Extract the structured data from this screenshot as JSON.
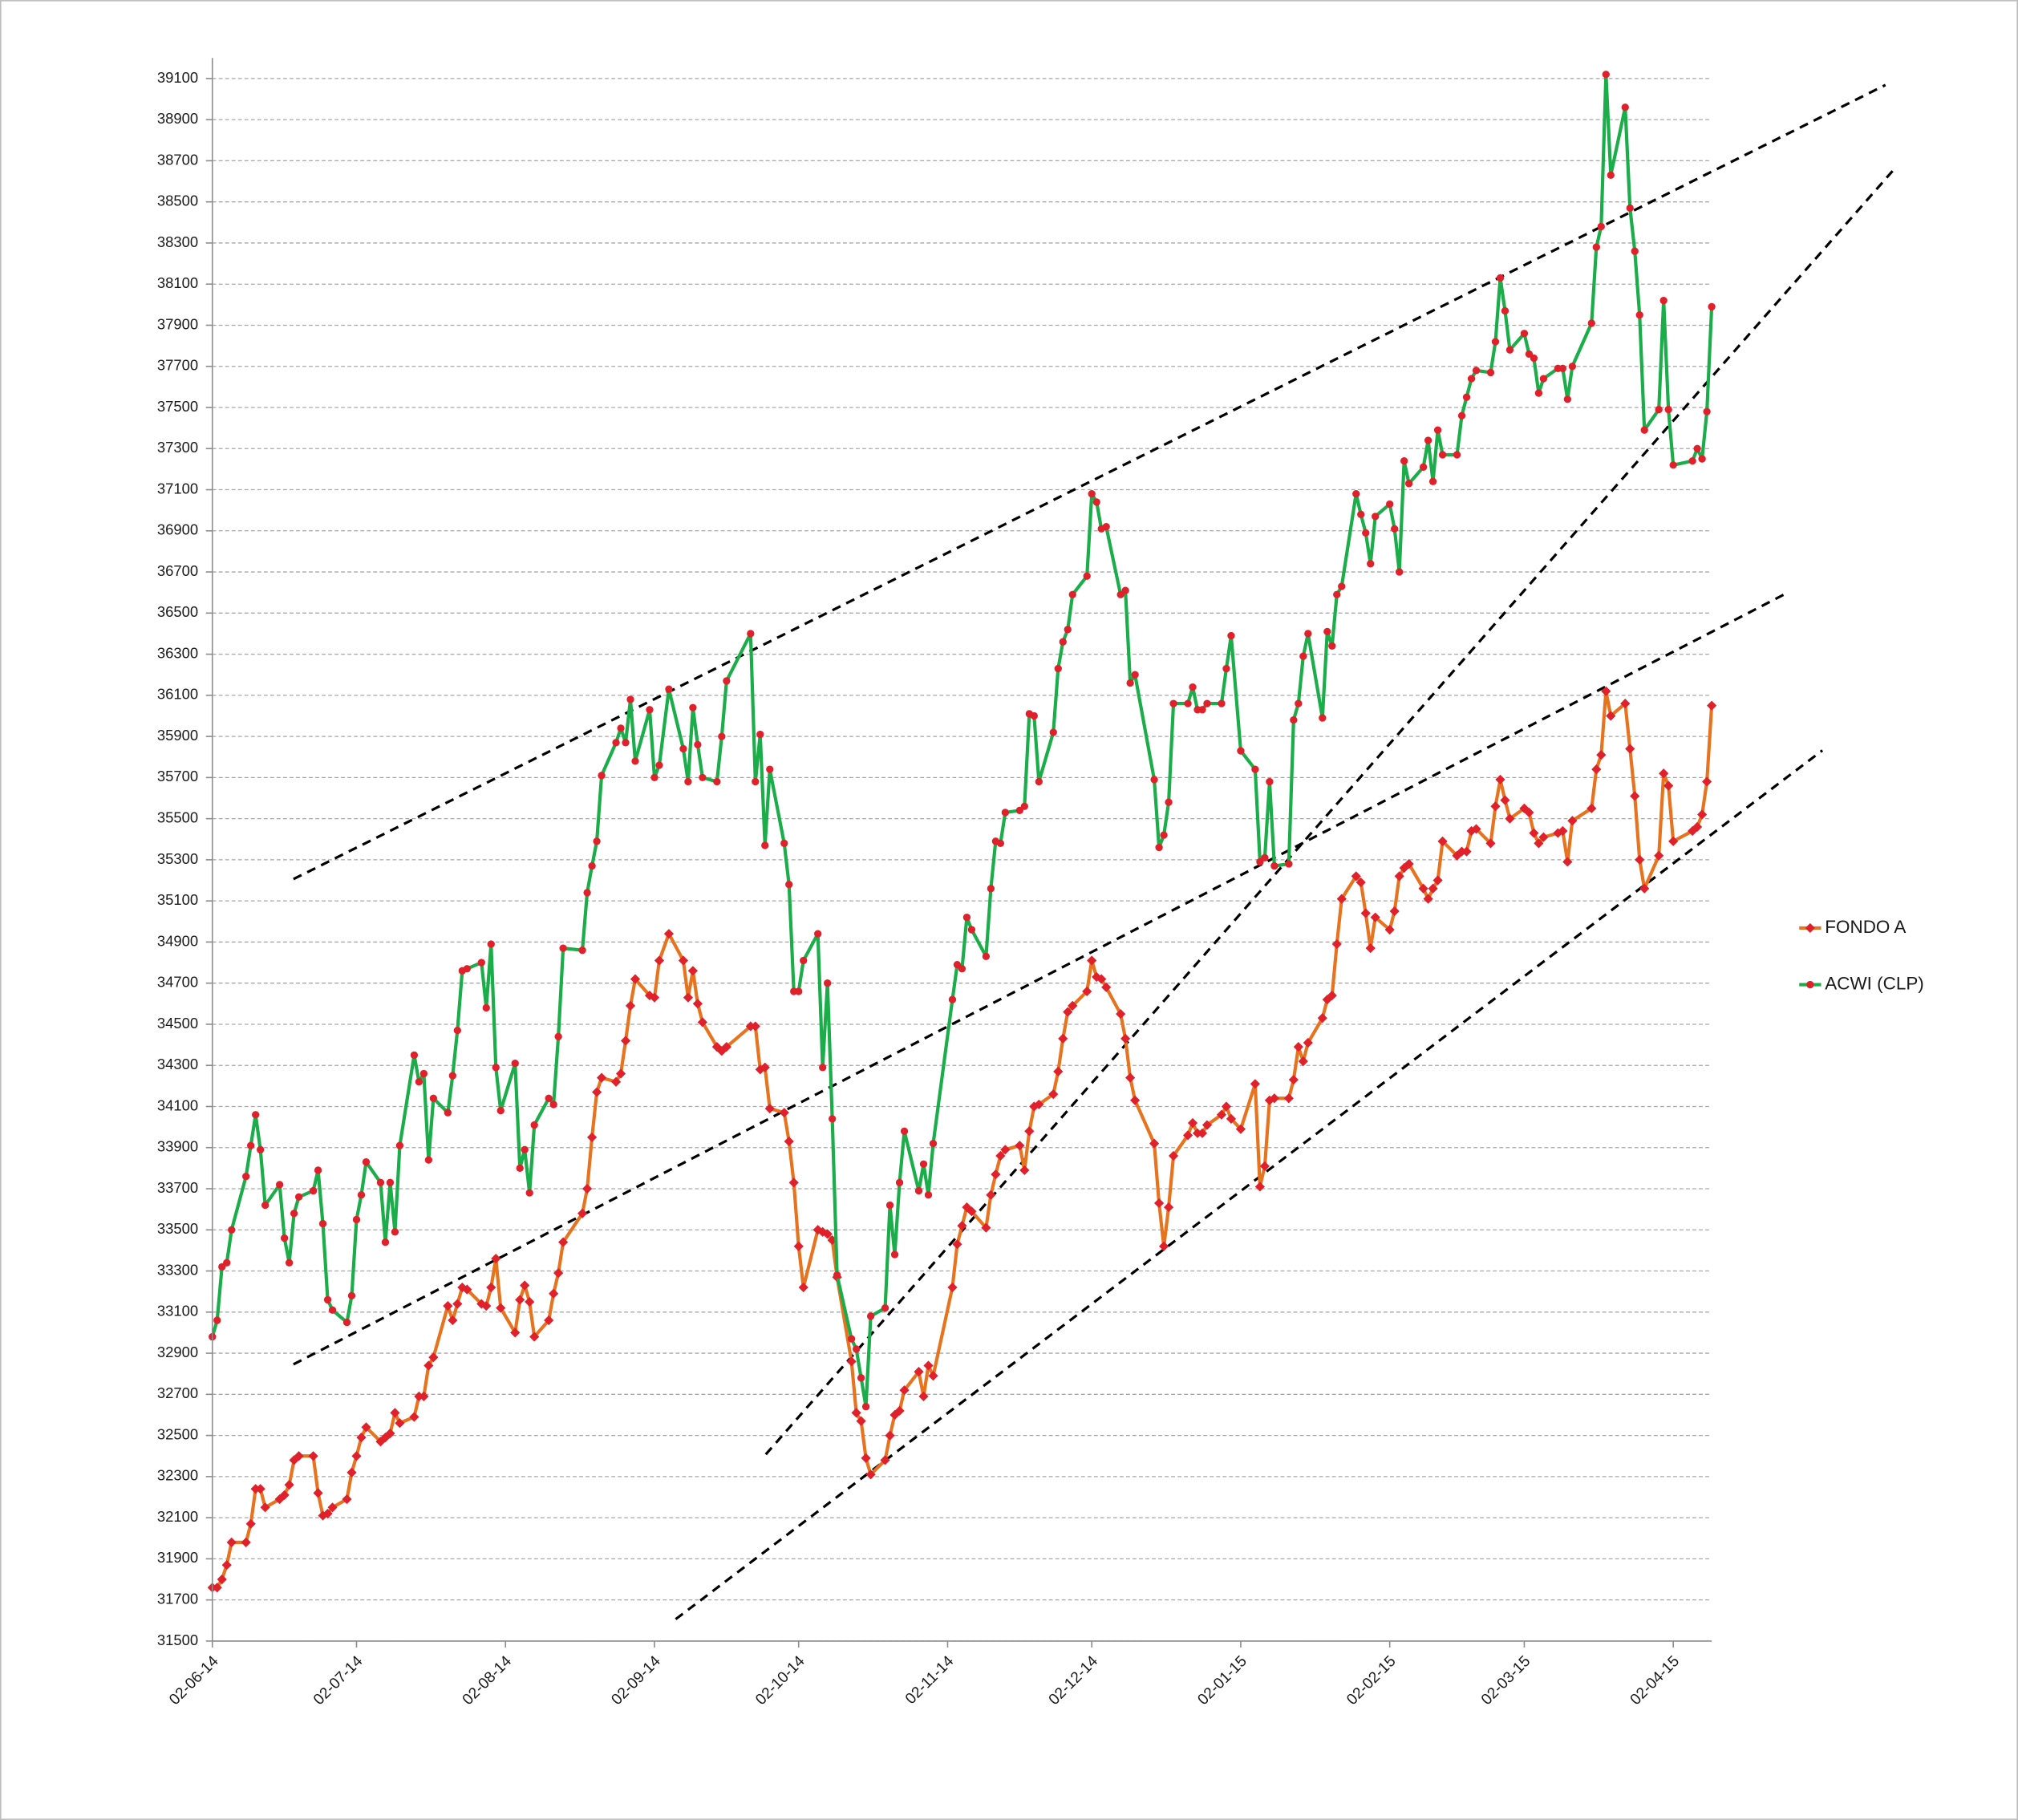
{
  "chart_data": {
    "type": "line",
    "x": [
      "02-06-14",
      "03-06-14",
      "04-06-14",
      "05-06-14",
      "06-06-14",
      "09-06-14",
      "10-06-14",
      "11-06-14",
      "12-06-14",
      "13-06-14",
      "16-06-14",
      "17-06-14",
      "18-06-14",
      "19-06-14",
      "20-06-14",
      "23-06-14",
      "24-06-14",
      "25-06-14",
      "26-06-14",
      "27-06-14",
      "30-06-14",
      "01-07-14",
      "02-07-14",
      "03-07-14",
      "04-07-14",
      "07-07-14",
      "08-07-14",
      "09-07-14",
      "10-07-14",
      "11-07-14",
      "14-07-14",
      "15-07-14",
      "16-07-14",
      "17-07-14",
      "18-07-14",
      "21-07-14",
      "22-07-14",
      "23-07-14",
      "24-07-14",
      "25-07-14",
      "28-07-14",
      "29-07-14",
      "30-07-14",
      "31-07-14",
      "01-08-14",
      "04-08-14",
      "05-08-14",
      "06-08-14",
      "07-08-14",
      "08-08-14",
      "11-08-14",
      "12-08-14",
      "13-08-14",
      "14-08-14",
      "18-08-14",
      "19-08-14",
      "20-08-14",
      "21-08-14",
      "22-08-14",
      "25-08-14",
      "26-08-14",
      "27-08-14",
      "28-08-14",
      "29-08-14",
      "01-09-14",
      "02-09-14",
      "03-09-14",
      "05-09-14",
      "08-09-14",
      "09-09-14",
      "10-09-14",
      "11-09-14",
      "12-09-14",
      "15-09-14",
      "16-09-14",
      "17-09-14",
      "22-09-14",
      "23-09-14",
      "24-09-14",
      "25-09-14",
      "26-09-14",
      "29-09-14",
      "30-09-14",
      "01-10-14",
      "02-10-14",
      "03-10-14",
      "06-10-14",
      "07-10-14",
      "08-10-14",
      "09-10-14",
      "10-10-14",
      "13-10-14",
      "14-10-14",
      "15-10-14",
      "16-10-14",
      "17-10-14",
      "20-10-14",
      "21-10-14",
      "22-10-14",
      "23-10-14",
      "24-10-14",
      "27-10-14",
      "28-10-14",
      "29-10-14",
      "30-10-14",
      "03-11-14",
      "04-11-14",
      "05-11-14",
      "06-11-14",
      "07-11-14",
      "10-11-14",
      "11-11-14",
      "12-11-14",
      "13-11-14",
      "14-11-14",
      "17-11-14",
      "18-11-14",
      "19-11-14",
      "20-11-14",
      "21-11-14",
      "24-11-14",
      "25-11-14",
      "26-11-14",
      "27-11-14",
      "28-11-14",
      "01-12-14",
      "02-12-14",
      "03-12-14",
      "04-12-14",
      "05-12-14",
      "08-12-14",
      "09-12-14",
      "10-12-14",
      "11-12-14",
      "15-12-14",
      "16-12-14",
      "17-12-14",
      "18-12-14",
      "19-12-14",
      "22-12-14",
      "23-12-14",
      "24-12-14",
      "25-12-14",
      "26-12-14",
      "29-12-14",
      "30-12-14",
      "31-12-14",
      "02-01-15",
      "05-01-15",
      "06-01-15",
      "07-01-15",
      "08-01-15",
      "09-01-15",
      "12-01-15",
      "13-01-15",
      "14-01-15",
      "15-01-15",
      "16-01-15",
      "19-01-15",
      "20-01-15",
      "21-01-15",
      "22-01-15",
      "23-01-15",
      "26-01-15",
      "27-01-15",
      "28-01-15",
      "29-01-15",
      "30-01-15",
      "02-02-15",
      "03-02-15",
      "04-02-15",
      "05-02-15",
      "06-02-15",
      "09-02-15",
      "10-02-15",
      "11-02-15",
      "12-02-15",
      "13-02-15",
      "16-02-15",
      "17-02-15",
      "18-02-15",
      "19-02-15",
      "20-02-15",
      "23-02-15",
      "24-02-15",
      "25-02-15",
      "26-02-15",
      "27-02-15",
      "02-03-15",
      "03-03-15",
      "04-03-15",
      "05-03-15",
      "06-03-15",
      "09-03-15",
      "10-03-15",
      "11-03-15",
      "12-03-15",
      "16-03-15",
      "17-03-15",
      "18-03-15",
      "19-03-15",
      "20-03-15",
      "23-03-15",
      "24-03-15",
      "25-03-15",
      "26-03-15",
      "27-03-15",
      "30-03-15",
      "31-03-15",
      "01-04-15",
      "02-04-15",
      "06-04-15",
      "07-04-15",
      "08-04-15",
      "09-04-15",
      "10-04-15"
    ],
    "series": [
      {
        "name": "FONDO A",
        "color": "#e8731e",
        "marker": "diamond",
        "marker_color": "#e0202a",
        "values": [
          31760,
          31760,
          31800,
          31870,
          31980,
          31980,
          32070,
          32240,
          32240,
          32150,
          32190,
          32210,
          32260,
          32380,
          32400,
          32400,
          32220,
          32110,
          32120,
          32150,
          32190,
          32320,
          32400,
          32490,
          32540,
          32470,
          32490,
          32510,
          32610,
          32560,
          32590,
          32690,
          32690,
          32840,
          32880,
          33130,
          33060,
          33140,
          33220,
          33210,
          33140,
          33130,
          33220,
          33360,
          33120,
          33000,
          33160,
          33230,
          33150,
          32980,
          33060,
          33190,
          33290,
          33440,
          33580,
          33700,
          33950,
          34170,
          34240,
          34220,
          34260,
          34420,
          34590,
          34720,
          34640,
          34630,
          34810,
          34940,
          34810,
          34630,
          34760,
          34600,
          34510,
          34390,
          34370,
          34390,
          34490,
          34490,
          34280,
          34290,
          34090,
          34070,
          33930,
          33730,
          33420,
          33220,
          33500,
          33490,
          33480,
          33450,
          33270,
          32860,
          32610,
          32570,
          32390,
          32310,
          32380,
          32500,
          32600,
          32620,
          32720,
          32810,
          32690,
          32840,
          32790,
          33220,
          33430,
          33520,
          33610,
          33590,
          33510,
          33670,
          33770,
          33860,
          33890,
          33910,
          33790,
          33980,
          34100,
          34110,
          34160,
          34270,
          34430,
          34560,
          34590,
          34660,
          34810,
          34730,
          34720,
          34680,
          34550,
          34430,
          34240,
          34130,
          33920,
          33630,
          33420,
          33610,
          33860,
          33960,
          34020,
          33970,
          33970,
          34010,
          34060,
          34100,
          34040,
          33990,
          34210,
          33710,
          33810,
          34130,
          34140,
          34140,
          34230,
          34390,
          34320,
          34410,
          34530,
          34620,
          34640,
          34890,
          35110,
          35220,
          35190,
          35040,
          34870,
          35020,
          34960,
          35050,
          35220,
          35260,
          35280,
          35160,
          35110,
          35160,
          35200,
          35390,
          35320,
          35340,
          35340,
          35440,
          35450,
          35380,
          35560,
          35690,
          35590,
          35500,
          35550,
          35530,
          35430,
          35380,
          35410,
          35430,
          35440,
          35290,
          35490,
          35550,
          35740,
          35810,
          36120,
          36000,
          36060,
          35840,
          35610,
          35300,
          35160,
          35320,
          35720,
          35660,
          35390,
          35440,
          35460,
          35520,
          35680,
          36050
        ]
      },
      {
        "name": "ACWI (CLP)",
        "color": "#1aad4a",
        "marker": "circle",
        "marker_color": "#e0202a",
        "values": [
          32980,
          33060,
          33320,
          33340,
          33500,
          33760,
          33910,
          34060,
          33890,
          33620,
          33720,
          33460,
          33340,
          33580,
          33660,
          33690,
          33790,
          33530,
          33160,
          33110,
          33050,
          33180,
          33550,
          33670,
          33830,
          33730,
          33440,
          33730,
          33490,
          33910,
          34350,
          34220,
          34260,
          33840,
          34140,
          34070,
          34250,
          34470,
          34760,
          34770,
          34800,
          34580,
          34890,
          34290,
          34080,
          34310,
          33800,
          33890,
          33680,
          34010,
          34140,
          34110,
          34440,
          34870,
          34860,
          35140,
          35270,
          35390,
          35710,
          35870,
          35940,
          35870,
          36080,
          35780,
          36030,
          35700,
          35760,
          36130,
          35840,
          35680,
          36040,
          35860,
          35700,
          35680,
          35900,
          36170,
          36400,
          35680,
          35910,
          35370,
          35740,
          35380,
          35180,
          34660,
          34660,
          34810,
          34940,
          34290,
          34700,
          34040,
          33280,
          32970,
          32920,
          32780,
          32640,
          33080,
          33120,
          33620,
          33380,
          33730,
          33980,
          33690,
          33820,
          33670,
          33920,
          34620,
          34790,
          34770,
          35020,
          34960,
          34830,
          35160,
          35390,
          35380,
          35530,
          35540,
          35560,
          36010,
          36000,
          35680,
          35920,
          36230,
          36360,
          36420,
          36590,
          36680,
          37080,
          37040,
          36910,
          36920,
          36590,
          36610,
          36160,
          36200,
          35690,
          35360,
          35420,
          35580,
          36060,
          36060,
          36140,
          36030,
          36030,
          36060,
          36060,
          36230,
          36390,
          35830,
          35740,
          35290,
          35310,
          35680,
          35270,
          35280,
          35980,
          36060,
          36290,
          36400,
          35990,
          36410,
          36340,
          36590,
          36630,
          37080,
          36980,
          36890,
          36740,
          36970,
          37030,
          36910,
          36700,
          37240,
          37130,
          37210,
          37340,
          37140,
          37390,
          37270,
          37270,
          37460,
          37550,
          37640,
          37680,
          37670,
          37820,
          38130,
          37970,
          37780,
          37860,
          37760,
          37740,
          37570,
          37640,
          37690,
          37690,
          37540,
          37700,
          37910,
          38280,
          38380,
          39120,
          38630,
          38960,
          38470,
          38260,
          37950,
          37390,
          37490,
          38020,
          37490,
          37220,
          37240,
          37300,
          37250,
          37480,
          37990
        ]
      }
    ],
    "xlim": [
      "02-06-14",
      "10-04-15"
    ],
    "xticks": [
      "02-06-14",
      "02-07-14",
      "02-08-14",
      "02-09-14",
      "02-10-14",
      "02-11-14",
      "02-12-14",
      "02-01-15",
      "02-02-15",
      "02-03-15",
      "02-04-15"
    ],
    "ylim": [
      31500,
      39200
    ],
    "yticks": [
      31500,
      31700,
      31900,
      32100,
      32300,
      32500,
      32700,
      32900,
      33100,
      33300,
      33500,
      33700,
      33900,
      34100,
      34300,
      34500,
      34700,
      34900,
      35100,
      35300,
      35500,
      35700,
      35900,
      36100,
      36300,
      36500,
      36700,
      36900,
      37100,
      37300,
      37500,
      37700,
      37900,
      38100,
      38300,
      38500,
      38700,
      38900,
      39100
    ],
    "grid": true,
    "legend": "right"
  }
}
